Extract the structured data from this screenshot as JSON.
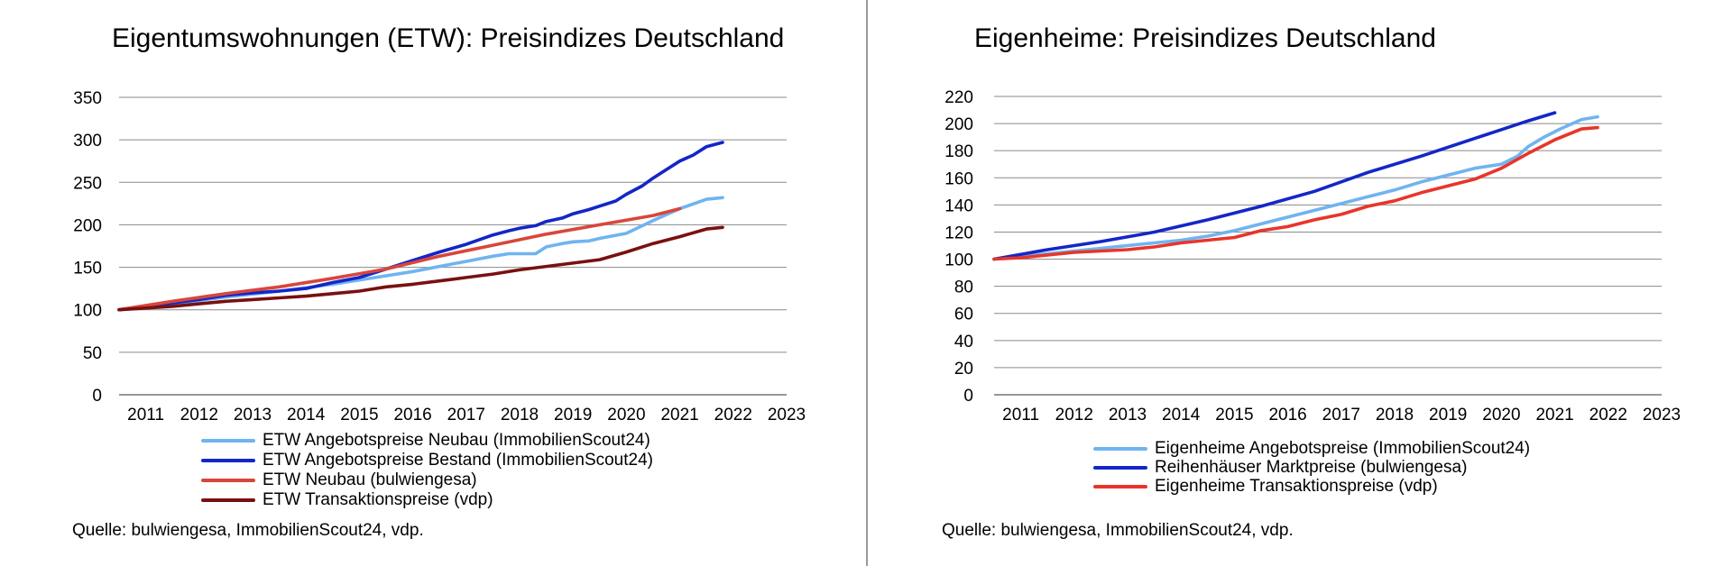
{
  "chart_data": [
    {
      "type": "line",
      "title": "Eigentumswohnungen (ETW): Preisindizes Deutschland",
      "xlabel": "",
      "ylabel": "",
      "xlim": [
        2011,
        2023.5
      ],
      "ylim": [
        0,
        350
      ],
      "x_ticks": [
        "2011",
        "2012",
        "2013",
        "2014",
        "2015",
        "2016",
        "2017",
        "2018",
        "2019",
        "2020",
        "2021",
        "2022",
        "2023"
      ],
      "y_ticks": [
        "0",
        "50",
        "100",
        "150",
        "200",
        "250",
        "300",
        "350"
      ],
      "grid": "horizontal",
      "legend_position": "bottom",
      "series": [
        {
          "name": "ETW Angebotspreise Neubau (ImmobilienScout24)",
          "color": "#6fb4f0",
          "x": [
            2011.0,
            2012.0,
            2013.0,
            2014.0,
            2015.0,
            2016.0,
            2016.5,
            2017.0,
            2017.5,
            2018.0,
            2018.3,
            2018.8,
            2019.0,
            2019.3,
            2019.5,
            2019.8,
            2020.0,
            2020.5,
            2021.0,
            2021.5,
            2022.0,
            2022.3
          ],
          "values": [
            100,
            107,
            115,
            122,
            130,
            140,
            145,
            151,
            157,
            163,
            166,
            166,
            174,
            178,
            180,
            181,
            184,
            190,
            205,
            219,
            230,
            232
          ]
        },
        {
          "name": "ETW Angebotspreise Bestand (ImmobilienScout24)",
          "color": "#1426c8",
          "x": [
            2011.0,
            2011.5,
            2012.0,
            2012.5,
            2013.0,
            2013.5,
            2014.0,
            2014.5,
            2015.0,
            2015.5,
            2016.0,
            2016.5,
            2017.0,
            2017.5,
            2018.0,
            2018.3,
            2018.5,
            2018.8,
            2019.0,
            2019.3,
            2019.5,
            2019.8,
            2020.0,
            2020.3,
            2020.5,
            2020.8,
            2021.0,
            2021.25,
            2021.5,
            2021.75,
            2022.0,
            2022.3
          ],
          "values": [
            100,
            104,
            108,
            112,
            117,
            120,
            122,
            125,
            132,
            138,
            148,
            158,
            168,
            177,
            188,
            193,
            196,
            199,
            204,
            208,
            213,
            218,
            222,
            228,
            236,
            246,
            255,
            265,
            275,
            282,
            292,
            297
          ]
        },
        {
          "name": "ETW Neubau (bulwiengesa)",
          "color": "#d9463b",
          "x": [
            2011.0,
            2012.0,
            2013.0,
            2014.0,
            2015.0,
            2016.0,
            2017.0,
            2018.0,
            2019.0,
            2020.0,
            2021.0,
            2021.5
          ],
          "values": [
            100,
            110,
            119,
            127,
            137,
            148,
            163,
            176,
            189,
            200,
            211,
            219
          ]
        },
        {
          "name": "ETW Transaktionspreise (vdp)",
          "color": "#7a1010",
          "x": [
            2011.0,
            2011.5,
            2012.0,
            2012.5,
            2013.0,
            2013.5,
            2014.0,
            2014.5,
            2015.0,
            2015.5,
            2016.0,
            2016.5,
            2017.0,
            2017.5,
            2018.0,
            2018.5,
            2019.0,
            2019.5,
            2020.0,
            2020.5,
            2021.0,
            2021.5,
            2022.0,
            2022.3
          ],
          "values": [
            100,
            102,
            104,
            107,
            110,
            112,
            114,
            116,
            119,
            122,
            127,
            130,
            134,
            138,
            142,
            147,
            151,
            155,
            159,
            168,
            178,
            186,
            195,
            197
          ]
        }
      ]
    },
    {
      "type": "line",
      "title": "Eigenheime: Preisindizes Deutschland",
      "xlabel": "",
      "ylabel": "",
      "xlim": [
        2011,
        2023.5
      ],
      "ylim": [
        0,
        220
      ],
      "x_ticks": [
        "2011",
        "2012",
        "2013",
        "2014",
        "2015",
        "2016",
        "2017",
        "2018",
        "2019",
        "2020",
        "2021",
        "2022",
        "2023"
      ],
      "y_ticks": [
        "0",
        "20",
        "40",
        "60",
        "80",
        "100",
        "120",
        "140",
        "160",
        "180",
        "200",
        "220"
      ],
      "grid": "horizontal",
      "legend_position": "bottom",
      "series": [
        {
          "name": "Eigenheime Angebotspreise (ImmobilienScout24)",
          "color": "#6fb4f0",
          "x": [
            2011.0,
            2012.0,
            2013.0,
            2014.0,
            2014.5,
            2015.0,
            2015.5,
            2016.0,
            2016.5,
            2017.0,
            2017.5,
            2018.0,
            2018.5,
            2019.0,
            2019.5,
            2020.0,
            2020.5,
            2020.8,
            2021.0,
            2021.3,
            2021.6,
            2022.0,
            2022.3
          ],
          "values": [
            100,
            104,
            108,
            112,
            114,
            117,
            121,
            126,
            131,
            136,
            141,
            146,
            151,
            157,
            162,
            167,
            170,
            176,
            183,
            190,
            196,
            203,
            205
          ]
        },
        {
          "name": "Reihenhäuser Marktpreise (bulwiengesa)",
          "color": "#1426c8",
          "x": [
            2011.0,
            2012.0,
            2013.0,
            2014.0,
            2015.0,
            2016.0,
            2017.0,
            2018.0,
            2019.0,
            2020.0,
            2021.0,
            2021.5
          ],
          "values": [
            100,
            107,
            113,
            120,
            129,
            139,
            150,
            164,
            176,
            189,
            202,
            208
          ]
        },
        {
          "name": "Eigenheime Transaktionspreise (vdp)",
          "color": "#e8352a",
          "x": [
            2011.0,
            2011.5,
            2012.0,
            2012.5,
            2013.0,
            2013.5,
            2014.0,
            2014.5,
            2015.0,
            2015.5,
            2016.0,
            2016.5,
            2017.0,
            2017.5,
            2018.0,
            2018.5,
            2019.0,
            2019.5,
            2020.0,
            2020.5,
            2021.0,
            2021.5,
            2022.0,
            2022.3
          ],
          "values": [
            100,
            101,
            103,
            105,
            106,
            107,
            109,
            112,
            114,
            116,
            121,
            124,
            129,
            133,
            139,
            143,
            149,
            154,
            159,
            167,
            178,
            188,
            196,
            197
          ]
        }
      ]
    }
  ],
  "left": {
    "title": "Eigentumswohnungen (ETW): Preisindizes Deutschland",
    "legend": [
      "ETW Angebotspreise Neubau (ImmobilienScout24)",
      "ETW Angebotspreise Bestand (ImmobilienScout24)",
      "ETW Neubau (bulwiengesa)",
      "ETW Transaktionspreise (vdp)"
    ],
    "source": "Quelle: bulwiengesa, ImmobilienScout24, vdp."
  },
  "right": {
    "title": "Eigenheime: Preisindizes Deutschland",
    "legend": [
      "Eigenheime Angebotspreise (ImmobilienScout24)",
      "Reihenhäuser Marktpreise (bulwiengesa)",
      "Eigenheime Transaktionspreise (vdp)"
    ],
    "source": "Quelle: bulwiengesa, ImmobilienScout24, vdp."
  }
}
